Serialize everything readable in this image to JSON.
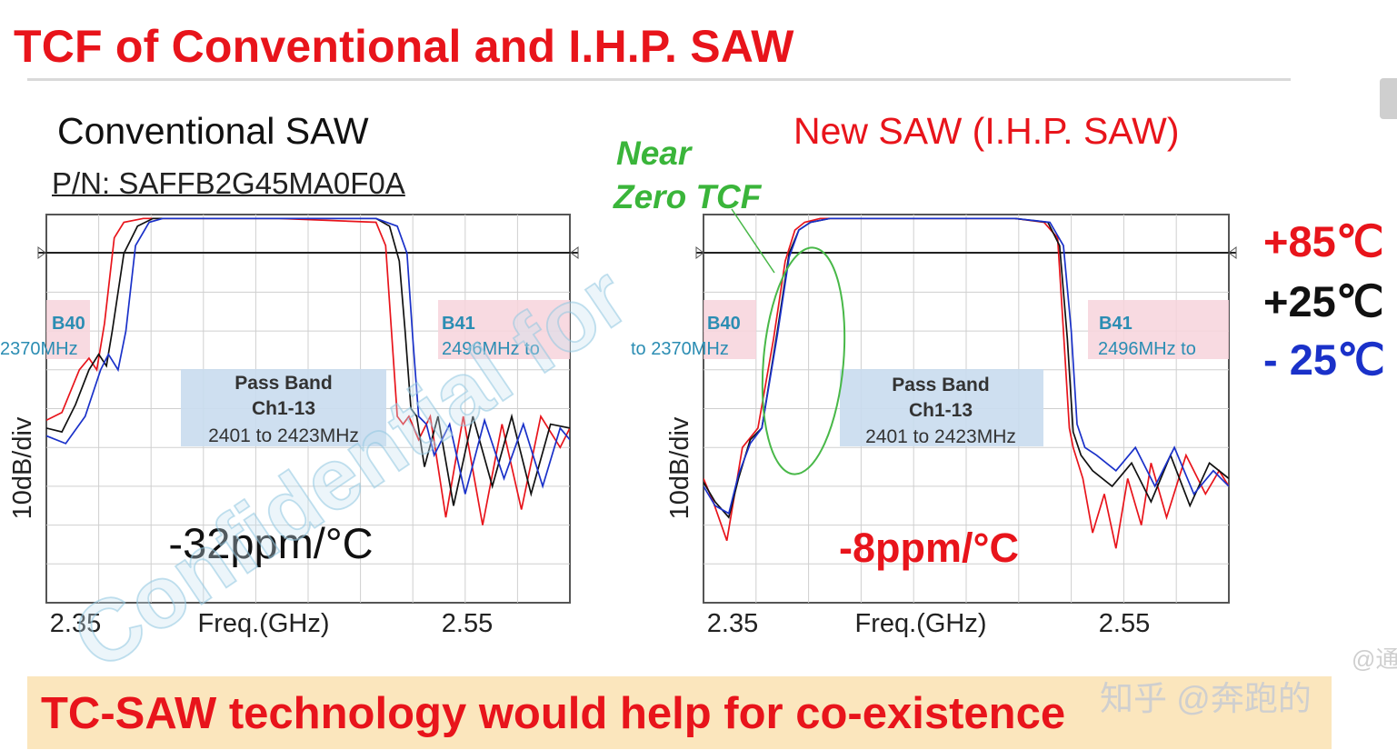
{
  "title": "TCF of Conventional and I.H.P. SAW",
  "left_panel": {
    "subtitle": "Conventional SAW",
    "part_number": "P/N: SAFFB2G45MA0F0A"
  },
  "right_panel": {
    "subtitle": "New SAW (I.H.P. SAW)",
    "annotation_line1": "Near",
    "annotation_line2": "Zero TCF"
  },
  "legend": [
    "+85℃",
    "+25℃",
    "- 25℃"
  ],
  "legend_colors": [
    "#e8141b",
    "#111111",
    "#1a31c9"
  ],
  "footer": "TC-SAW technology would help for co-existence",
  "watermark": "知乎 @奔跑的",
  "watermark_partial": "@通",
  "chart_data": [
    {
      "type": "line",
      "panel": "Conventional SAW",
      "xlabel": "Freq.(GHz)",
      "ylabel": "10dB/div",
      "x_ticks": [
        "2.35",
        "2.55"
      ],
      "xlim": [
        2.35,
        2.62
      ],
      "ylim": [
        -100,
        0
      ],
      "grid": true,
      "tcf_label": "-32ppm/°C",
      "band_b40": [
        "B40",
        "2370MHz"
      ],
      "band_b41": [
        "B41",
        "2496MHz to"
      ],
      "passband": [
        "Pass Band",
        "Ch1-13",
        "2401 to 2423MHz"
      ],
      "watermark_text": "Confidential for",
      "series": [
        {
          "name": "+85℃",
          "color": "#e8141b",
          "x": [
            2.35,
            2.358,
            2.367,
            2.372,
            2.376,
            2.38,
            2.385,
            2.39,
            2.4,
            2.43,
            2.47,
            2.52,
            2.525,
            2.528,
            2.531,
            2.534,
            2.537,
            2.542,
            2.548,
            2.556,
            2.565,
            2.575,
            2.585,
            2.595,
            2.605,
            2.615,
            2.62
          ],
          "y": [
            -53,
            -51,
            -40,
            -37,
            -40,
            -28,
            -6,
            -2,
            -1,
            -1,
            -1,
            -2,
            -8,
            -30,
            -52,
            -54,
            -52,
            -58,
            -52,
            -78,
            -52,
            -80,
            -54,
            -76,
            -52,
            -60,
            -55
          ]
        },
        {
          "name": "+25℃",
          "color": "#111111",
          "x": [
            2.35,
            2.358,
            2.365,
            2.372,
            2.377,
            2.381,
            2.384,
            2.39,
            2.397,
            2.405,
            2.43,
            2.47,
            2.52,
            2.527,
            2.532,
            2.535,
            2.538,
            2.541,
            2.545,
            2.552,
            2.56,
            2.57,
            2.58,
            2.59,
            2.6,
            2.61,
            2.62
          ],
          "y": [
            -55,
            -56,
            -49,
            -40,
            -36,
            -39,
            -30,
            -10,
            -3,
            -1,
            -1,
            -1,
            -1,
            -3,
            -12,
            -30,
            -50,
            -52,
            -65,
            -52,
            -75,
            -52,
            -70,
            -52,
            -72,
            -54,
            -55
          ]
        },
        {
          "name": "- 25℃",
          "color": "#1a31c9",
          "x": [
            2.35,
            2.36,
            2.37,
            2.378,
            2.382,
            2.387,
            2.391,
            2.396,
            2.403,
            2.41,
            2.43,
            2.47,
            2.52,
            2.531,
            2.536,
            2.539,
            2.542,
            2.546,
            2.55,
            2.558,
            2.566,
            2.576,
            2.586,
            2.596,
            2.606,
            2.615,
            2.62
          ],
          "y": [
            -57,
            -59,
            -52,
            -40,
            -36,
            -40,
            -30,
            -8,
            -2,
            -1,
            -1,
            -1,
            -1,
            -3,
            -10,
            -32,
            -52,
            -54,
            -62,
            -54,
            -72,
            -53,
            -68,
            -54,
            -70,
            -55,
            -58
          ]
        }
      ]
    },
    {
      "type": "line",
      "panel": "New SAW (I.H.P. SAW)",
      "xlabel": "Freq.(GHz)",
      "ylabel": "10dB/div",
      "x_ticks": [
        "2.35",
        "2.55"
      ],
      "xlim": [
        2.35,
        2.62
      ],
      "ylim": [
        -100,
        0
      ],
      "grid": true,
      "tcf_label": "-8ppm/°C",
      "band_b40": [
        "B40",
        "to 2370MHz"
      ],
      "band_b41": [
        "B41",
        "2496MHz to"
      ],
      "passband": [
        "Pass Band",
        "Ch1-13",
        "2401 to 2423MHz"
      ],
      "series": [
        {
          "name": "+85℃",
          "color": "#e8141b",
          "x": [
            2.35,
            2.355,
            2.362,
            2.366,
            2.37,
            2.378,
            2.386,
            2.392,
            2.397,
            2.402,
            2.41,
            2.43,
            2.47,
            2.51,
            2.525,
            2.532,
            2.535,
            2.538,
            2.54,
            2.545,
            2.55,
            2.556,
            2.562,
            2.568,
            2.575,
            2.58,
            2.588,
            2.598,
            2.608,
            2.615,
            2.62
          ],
          "y": [
            -68,
            -74,
            -84,
            -72,
            -60,
            -55,
            -32,
            -12,
            -4,
            -2,
            -1,
            -1,
            -1,
            -1,
            -2,
            -6,
            -30,
            -55,
            -60,
            -68,
            -82,
            -72,
            -86,
            -68,
            -80,
            -64,
            -78,
            -62,
            -72,
            -66,
            -70
          ]
        },
        {
          "name": "+25℃",
          "color": "#111111",
          "x": [
            2.35,
            2.356,
            2.363,
            2.368,
            2.374,
            2.38,
            2.388,
            2.394,
            2.399,
            2.405,
            2.415,
            2.43,
            2.47,
            2.51,
            2.527,
            2.533,
            2.537,
            2.54,
            2.544,
            2.55,
            2.56,
            2.57,
            2.58,
            2.59,
            2.6,
            2.61,
            2.62
          ],
          "y": [
            -69,
            -74,
            -78,
            -68,
            -58,
            -55,
            -30,
            -10,
            -4,
            -2,
            -1,
            -1,
            -1,
            -1,
            -2,
            -8,
            -32,
            -56,
            -62,
            -66,
            -70,
            -64,
            -74,
            -62,
            -75,
            -64,
            -68
          ]
        },
        {
          "name": "- 25℃",
          "color": "#1a31c9",
          "x": [
            2.35,
            2.356,
            2.363,
            2.368,
            2.374,
            2.38,
            2.388,
            2.394,
            2.399,
            2.405,
            2.415,
            2.43,
            2.47,
            2.51,
            2.528,
            2.535,
            2.539,
            2.542,
            2.546,
            2.552,
            2.562,
            2.572,
            2.582,
            2.592,
            2.602,
            2.612,
            2.62
          ],
          "y": [
            -70,
            -75,
            -77,
            -67,
            -59,
            -55,
            -31,
            -11,
            -4,
            -2,
            -1,
            -1,
            -1,
            -1,
            -2,
            -8,
            -30,
            -54,
            -60,
            -62,
            -66,
            -60,
            -70,
            -60,
            -72,
            -66,
            -70
          ]
        }
      ]
    }
  ]
}
